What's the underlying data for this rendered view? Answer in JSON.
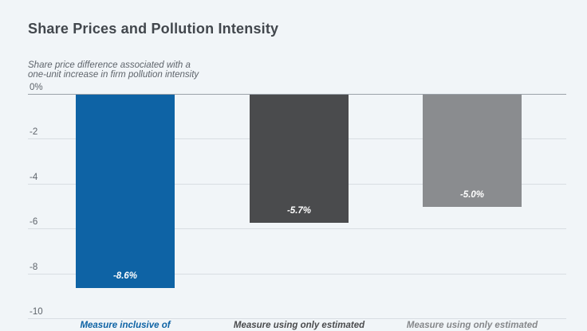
{
  "chart_data": {
    "type": "bar",
    "title": "Share Prices and Pollution Intensity",
    "subtitle_lines": [
      "Share price difference associated with a",
      "one-unit increase in firm pollution intensity"
    ],
    "categories": [
      "Measure inclusive of",
      "Measure using only estimated",
      "Measure using only estimated"
    ],
    "values": [
      -8.6,
      -5.7,
      -5.0
    ],
    "value_labels": [
      "-8.6%",
      "-5.7%",
      "-5.0%"
    ],
    "bar_colors": [
      "#0e63a5",
      "#4a4b4d",
      "#8a8c8f"
    ],
    "category_colors": [
      "#0e63a5",
      "#4a4b4d",
      "#85878a"
    ],
    "ytick_labels": [
      "0%",
      "-2",
      "-4",
      "-6",
      "-8",
      "-10"
    ],
    "ytick_values": [
      0,
      -2,
      -4,
      -6,
      -8,
      -10
    ],
    "ylim": [
      -10.5,
      0
    ],
    "xlabel": "",
    "ylabel": "",
    "grid": true,
    "legend": "none",
    "background_color": "#f1f5f8",
    "zero_line_color": "#9aa1a8",
    "gridline_color": "#d8dde2"
  }
}
